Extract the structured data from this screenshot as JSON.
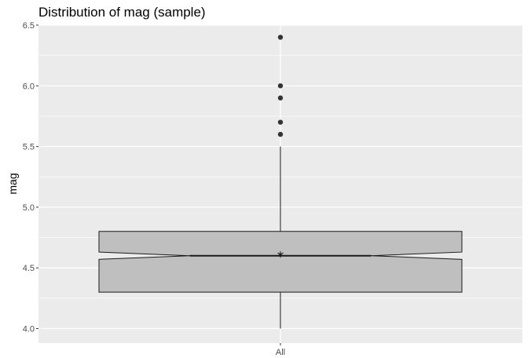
{
  "chart_data": {
    "type": "boxplot",
    "title": "Distribution of mag (sample)",
    "xlabel": "",
    "ylabel": "mag",
    "categories": [
      "All"
    ],
    "ylim": [
      3.88,
      6.5
    ],
    "yticks": [
      "4.0",
      "4.5",
      "5.0",
      "5.5",
      "6.0",
      "6.5"
    ],
    "grid": true,
    "notched": true,
    "boxes": [
      {
        "category": "All",
        "whisker_low": 4.0,
        "q1": 4.3,
        "median": 4.6,
        "q3": 4.8,
        "whisker_high": 5.5,
        "notch_low": 4.57,
        "notch_high": 4.63,
        "mean": 4.61,
        "outliers": [
          5.6,
          5.7,
          5.9,
          6.0,
          6.4
        ]
      }
    ],
    "colors": {
      "panel": "#ebebeb",
      "grid": "#ffffff",
      "box_fill": "#bfbfbf",
      "box_stroke": "#1a1a1a",
      "point": "#333333"
    }
  }
}
